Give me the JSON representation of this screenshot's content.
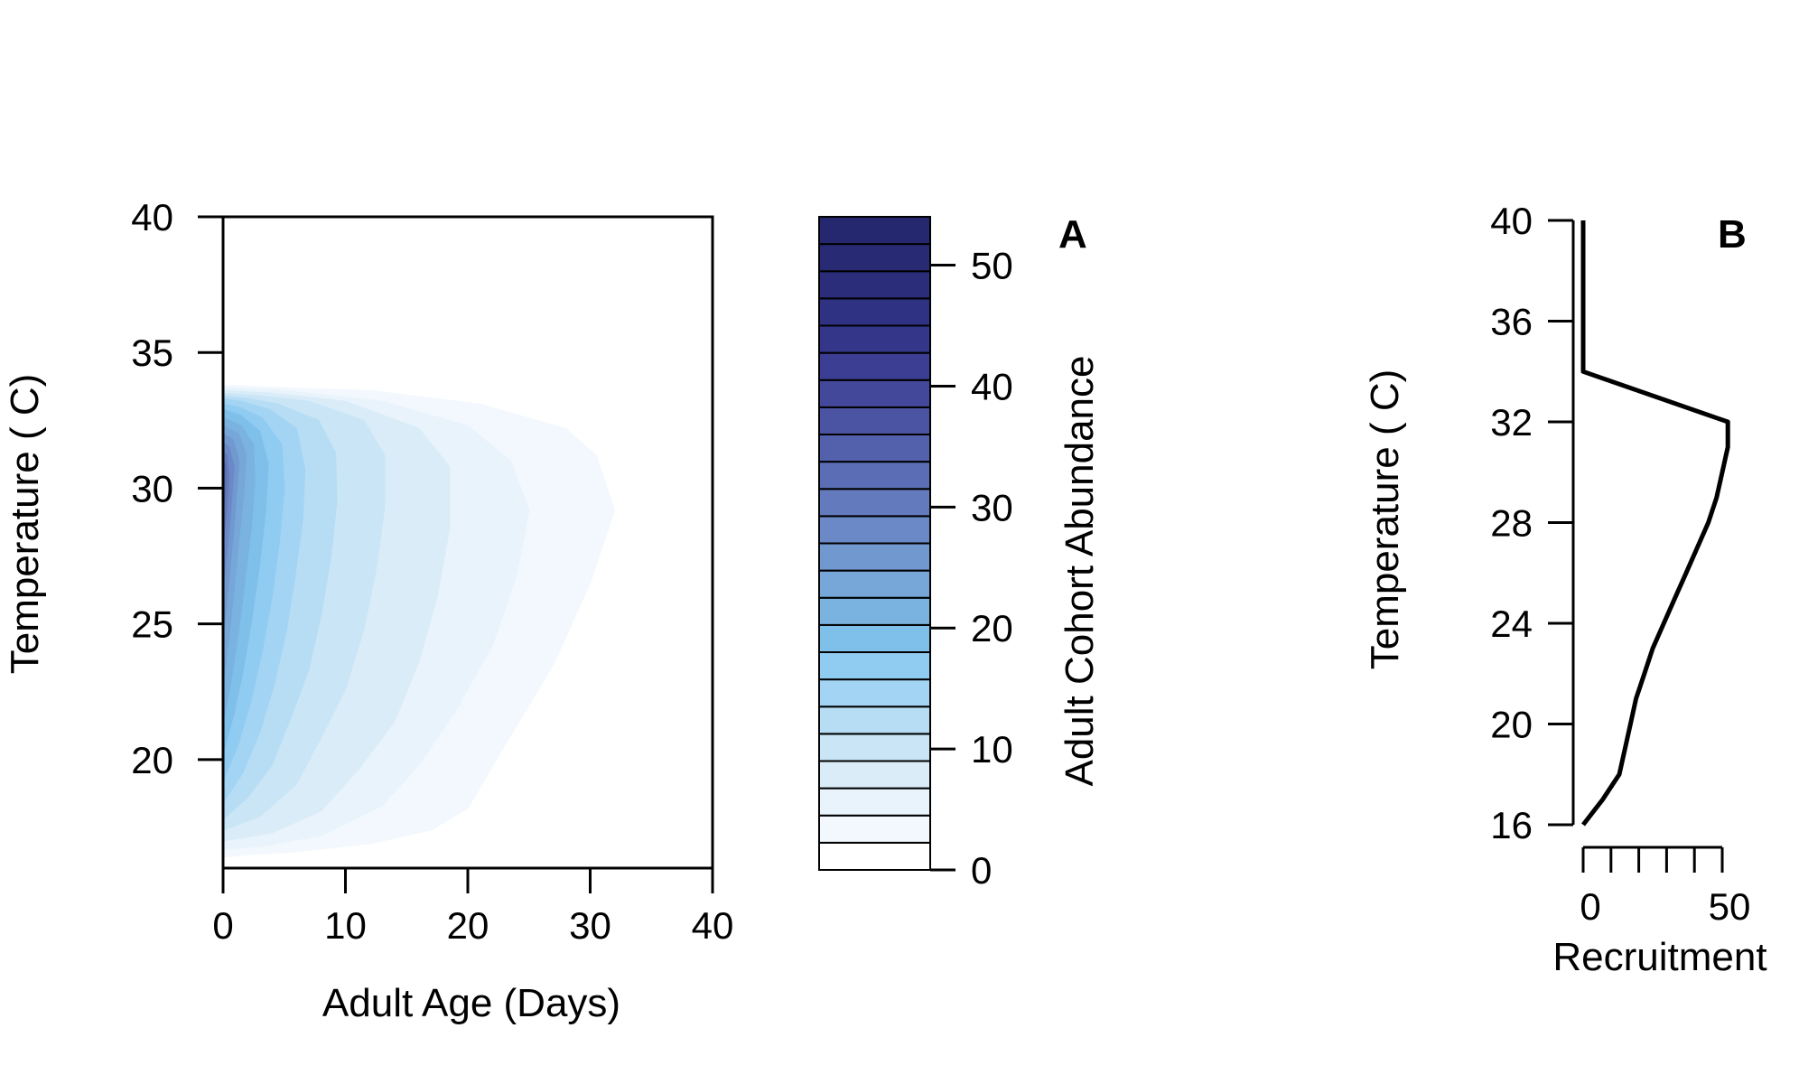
{
  "figure": {
    "panel_a_label": "A",
    "panel_b_label": "B"
  },
  "chart_data": [
    {
      "type": "heatmap",
      "panel": "A",
      "title": "",
      "xlabel": "Adult Age (Days)",
      "ylabel": "Temperature ( C)",
      "xlim": [
        0,
        40
      ],
      "ylim": [
        16,
        40
      ],
      "xticks": [
        0,
        10,
        20,
        30,
        40
      ],
      "yticks": [
        20,
        25,
        30,
        35,
        40
      ],
      "grid": false,
      "colorbar": {
        "label": "Adult Cohort Abundance",
        "range": [
          0,
          54
        ],
        "ticks": [
          0,
          10,
          20,
          30,
          40,
          50
        ],
        "level_step": 2.5,
        "colors": [
          "#ffffff",
          "#f2f8fd",
          "#e8f3fb",
          "#d9ecf8",
          "#c9e5f6",
          "#b7ddf4",
          "#a3d4f3",
          "#90cbf1",
          "#7fc0ea",
          "#7bb3e0",
          "#77a6d8",
          "#7198cf",
          "#6a89c6",
          "#637bbd",
          "#5b6db4",
          "#5360ab",
          "#4b54a3",
          "#43489b",
          "#3b3e92",
          "#34368a",
          "#2f3183",
          "#2b2d7b",
          "#282a74",
          "#26286f"
        ]
      },
      "contour_outlines": [
        {
          "level": 0,
          "points": [
            [
              0,
              16.4
            ],
            [
              2,
              16.5
            ],
            [
              6,
              16.6
            ],
            [
              12,
              16.9
            ],
            [
              17,
              17.4
            ],
            [
              20,
              18.2
            ],
            [
              23,
              20.5
            ],
            [
              27,
              23.5
            ],
            [
              30,
              26.5
            ],
            [
              32,
              29.2
            ],
            [
              30.5,
              31.2
            ],
            [
              28,
              32.2
            ],
            [
              21,
              33.1
            ],
            [
              12,
              33.6
            ],
            [
              5,
              33.7
            ],
            [
              0,
              33.8
            ]
          ]
        },
        {
          "level": 2.5,
          "points": [
            [
              0,
              16.7
            ],
            [
              3,
              16.8
            ],
            [
              8,
              17.2
            ],
            [
              13,
              18.3
            ],
            [
              16,
              19.8
            ],
            [
              19,
              21.8
            ],
            [
              22,
              24.2
            ],
            [
              24,
              26.8
            ],
            [
              25,
              29.2
            ],
            [
              23.5,
              31.0
            ],
            [
              20,
              32.3
            ],
            [
              13,
              33.2
            ],
            [
              5,
              33.6
            ],
            [
              0,
              33.7
            ]
          ]
        },
        {
          "level": 5,
          "points": [
            [
              0,
              17.0
            ],
            [
              4,
              17.3
            ],
            [
              8,
              18.1
            ],
            [
              11,
              19.6
            ],
            [
              14,
              21.4
            ],
            [
              16,
              23.6
            ],
            [
              17.5,
              26.0
            ],
            [
              18.5,
              28.5
            ],
            [
              18.5,
              30.8
            ],
            [
              16,
              32.2
            ],
            [
              10,
              33.2
            ],
            [
              4,
              33.5
            ],
            [
              0,
              33.6
            ]
          ]
        },
        {
          "level": 7.5,
          "points": [
            [
              0,
              17.4
            ],
            [
              3,
              17.9
            ],
            [
              6,
              19.1
            ],
            [
              8,
              20.8
            ],
            [
              10,
              22.6
            ],
            [
              11.5,
              24.8
            ],
            [
              12.5,
              27.0
            ],
            [
              13.2,
              29.3
            ],
            [
              13.2,
              31.2
            ],
            [
              11.5,
              32.5
            ],
            [
              7,
              33.2
            ],
            [
              3,
              33.4
            ],
            [
              0,
              33.5
            ]
          ]
        },
        {
          "level": 10,
          "points": [
            [
              0,
              17.8
            ],
            [
              2,
              18.6
            ],
            [
              4,
              19.8
            ],
            [
              5.5,
              21.5
            ],
            [
              7,
              23.3
            ],
            [
              8,
              25.3
            ],
            [
              8.8,
              27.4
            ],
            [
              9.3,
              29.5
            ],
            [
              9.2,
              31.3
            ],
            [
              7.8,
              32.5
            ],
            [
              4.5,
              33.1
            ],
            [
              2,
              33.3
            ],
            [
              0,
              33.4
            ]
          ]
        },
        {
          "level": 12.5,
          "points": [
            [
              0,
              18.4
            ],
            [
              1.6,
              19.5
            ],
            [
              3,
              21.0
            ],
            [
              4.2,
              22.8
            ],
            [
              5.2,
              24.8
            ],
            [
              5.9,
              26.8
            ],
            [
              6.5,
              28.8
            ],
            [
              6.7,
              30.7
            ],
            [
              6.0,
              32.2
            ],
            [
              3.8,
              32.9
            ],
            [
              1.5,
              33.2
            ],
            [
              0,
              33.3
            ]
          ]
        },
        {
          "level": 15,
          "points": [
            [
              0,
              19.2
            ],
            [
              1.2,
              20.5
            ],
            [
              2.3,
              22.2
            ],
            [
              3.2,
              24.0
            ],
            [
              4.0,
              26.0
            ],
            [
              4.6,
              28.0
            ],
            [
              5.0,
              30.0
            ],
            [
              4.8,
              31.6
            ],
            [
              3.2,
              32.6
            ],
            [
              1.2,
              33.0
            ],
            [
              0,
              33.1
            ]
          ]
        },
        {
          "level": 17.5,
          "points": [
            [
              0,
              20.2
            ],
            [
              0.9,
              21.7
            ],
            [
              1.7,
              23.4
            ],
            [
              2.4,
              25.3
            ],
            [
              3.0,
              27.2
            ],
            [
              3.5,
              29.2
            ],
            [
              3.7,
              30.9
            ],
            [
              3.0,
              32.1
            ],
            [
              1.4,
              32.7
            ],
            [
              0,
              32.9
            ]
          ]
        },
        {
          "level": 20,
          "points": [
            [
              0,
              21.3
            ],
            [
              0.7,
              23.0
            ],
            [
              1.3,
              24.8
            ],
            [
              1.8,
              26.6
            ],
            [
              2.3,
              28.5
            ],
            [
              2.6,
              30.2
            ],
            [
              2.5,
              31.6
            ],
            [
              1.5,
              32.3
            ],
            [
              0,
              32.6
            ]
          ]
        },
        {
          "level": 22.5,
          "points": [
            [
              0,
              22.8
            ],
            [
              0.5,
              24.5
            ],
            [
              0.9,
              26.3
            ],
            [
              1.3,
              28.1
            ],
            [
              1.7,
              29.8
            ],
            [
              1.9,
              31.2
            ],
            [
              1.3,
              32.0
            ],
            [
              0,
              32.3
            ]
          ]
        },
        {
          "level": 25,
          "points": [
            [
              0,
              24.5
            ],
            [
              0.4,
              26.3
            ],
            [
              0.8,
              28.1
            ],
            [
              1.1,
              29.8
            ],
            [
              1.3,
              31.0
            ],
            [
              0.8,
              31.8
            ],
            [
              0,
              32.0
            ]
          ]
        },
        {
          "level": 27.5,
          "points": [
            [
              0,
              26.3
            ],
            [
              0.4,
              28.0
            ],
            [
              0.7,
              29.5
            ],
            [
              0.9,
              30.8
            ],
            [
              0.5,
              31.5
            ],
            [
              0,
              31.7
            ]
          ]
        },
        {
          "level": 30,
          "points": [
            [
              0,
              27.8
            ],
            [
              0.3,
              29.2
            ],
            [
              0.5,
              30.4
            ],
            [
              0.3,
              31.2
            ],
            [
              0,
              31.4
            ]
          ]
        },
        {
          "level": 32.5,
          "points": [
            [
              0,
              28.8
            ],
            [
              0.2,
              30.0
            ],
            [
              0.25,
              30.8
            ],
            [
              0,
              31.1
            ]
          ]
        }
      ]
    },
    {
      "type": "line",
      "panel": "B",
      "title": "",
      "xlabel": "Recruitment",
      "ylabel": "Temperature ( C)",
      "xlim": [
        0,
        50
      ],
      "ylim": [
        16,
        40
      ],
      "xtick_labels": [
        0,
        50
      ],
      "xticks_minor": [
        0,
        10,
        20,
        30,
        40,
        50
      ],
      "yticks": [
        16,
        20,
        24,
        28,
        32,
        36,
        40
      ],
      "grid": false,
      "series": [
        {
          "x": [
            0,
            7,
            13,
            17,
            19,
            22,
            25,
            29,
            33,
            37,
            41,
            45,
            48,
            50,
            52,
            52,
            0,
            0,
            0
          ],
          "y": [
            16,
            17,
            18,
            20,
            21,
            22,
            23,
            24,
            25,
            26,
            27,
            28,
            29,
            30,
            31,
            32,
            34,
            36,
            40
          ]
        }
      ]
    }
  ]
}
